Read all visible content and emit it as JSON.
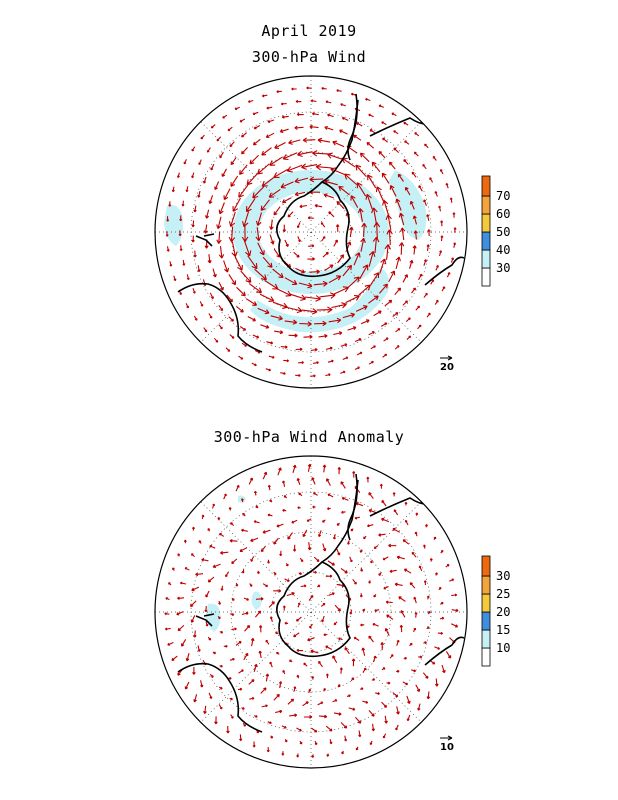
{
  "header": {
    "date": "April 2019",
    "panel1_title": "300-hPa Wind",
    "panel2_title": "300-hPa Wind Anomaly"
  },
  "panels": [
    {
      "name": "wind",
      "colorbar": {
        "labels": [
          "30",
          "40",
          "50",
          "60",
          "70"
        ],
        "colors": [
          "#ffffff",
          "#c4f0f6",
          "#3f8ee0",
          "#f4c93c",
          "#f3a43b",
          "#ee6a10"
        ]
      },
      "reference_vector_label": "20"
    },
    {
      "name": "anomaly",
      "colorbar": {
        "labels": [
          "10",
          "15",
          "20",
          "25",
          "30"
        ],
        "colors": [
          "#ffffff",
          "#c4f0f6",
          "#3f8ee0",
          "#f4c93c",
          "#f3a43b",
          "#ee6a10"
        ]
      },
      "reference_vector_label": "10"
    }
  ],
  "style": {
    "vector_color": "#c00000",
    "shade_color": "#c4f0f6",
    "coast_color": "#000000"
  }
}
